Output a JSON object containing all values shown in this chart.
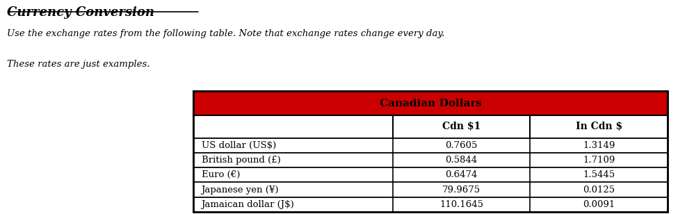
{
  "title": "Currency Conversion",
  "subtitle_line1": "Use the exchange rates from the following table. Note that exchange rates change every day.",
  "subtitle_line2": "These rates are just examples.",
  "table_header": "Canadian Dollars",
  "col_headers": [
    "",
    "Cdn $1",
    "In Cdn $"
  ],
  "rows": [
    [
      "US dollar (US$)",
      "0.7605",
      "1.3149"
    ],
    [
      "British pound (£)",
      "0.5844",
      "1.7109"
    ],
    [
      "Euro (€)",
      "0.6474",
      "1.5445"
    ],
    [
      "Japanese yen (¥)",
      "79.9675",
      "0.0125"
    ],
    [
      "Jamaican dollar (J$)",
      "110.1645",
      "0.0091"
    ]
  ],
  "header_bg": "#CC0000",
  "border_color": "#000000",
  "text_color": "#000000",
  "background_color": "#ffffff"
}
